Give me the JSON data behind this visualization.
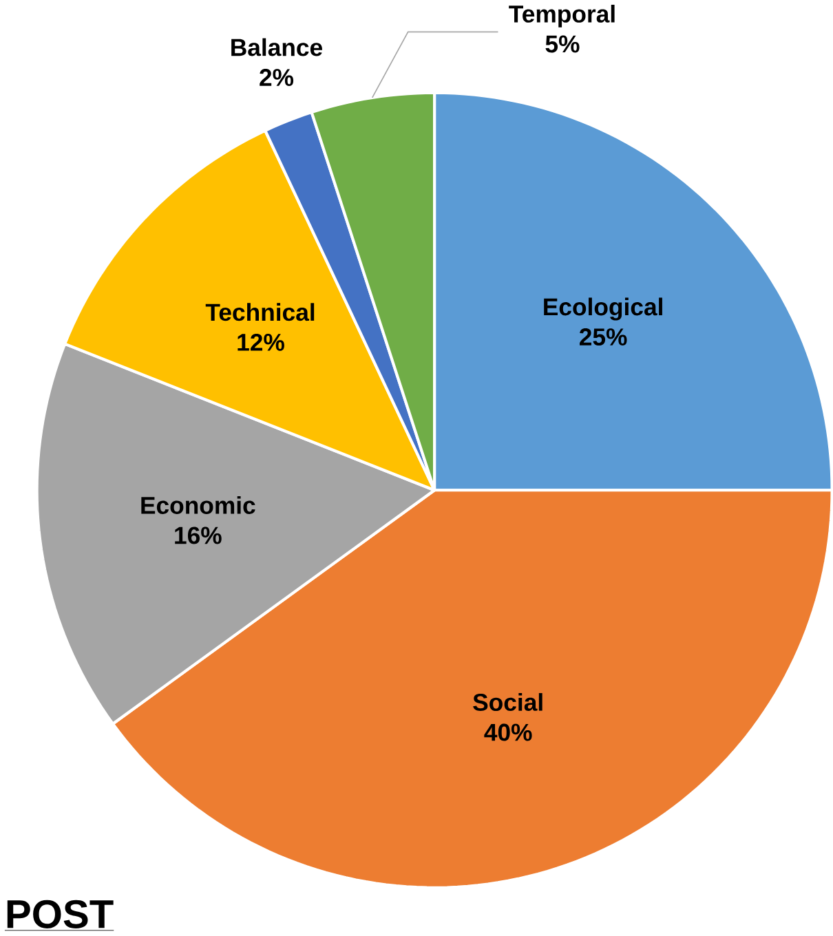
{
  "chart_data": {
    "type": "pie",
    "title": "POST",
    "categories": [
      "Ecological",
      "Social",
      "Economic",
      "Technical",
      "Balance",
      "Temporal"
    ],
    "values": [
      25,
      40,
      16,
      12,
      2,
      5
    ],
    "colors": [
      "#5b9bd5",
      "#ed7d31",
      "#a5a5a5",
      "#ffc000",
      "#4472c4",
      "#70ad47"
    ],
    "value_labels": [
      "25%",
      "40%",
      "16%",
      "12%",
      "2%",
      "5%"
    ]
  }
}
